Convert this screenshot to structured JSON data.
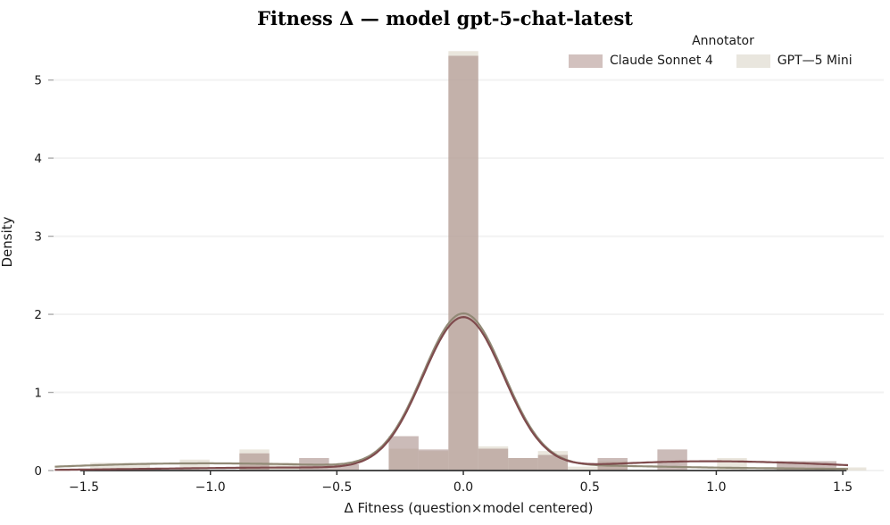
{
  "chart_data": {
    "type": "histogram+kde",
    "title": "Fitness Δ — model gpt-5-chat-latest",
    "xlabel": "Δ Fitness (question×model centered)",
    "ylabel": "Density",
    "xlim": [
      -1.62,
      1.662
    ],
    "ylim": [
      0,
      5.43
    ],
    "grid": "horizontal-only, light gray, behind data",
    "background": "#ffffff",
    "gridline_color": "#f2f2f2",
    "spine_color": "#333333",
    "bin_width": 0.118,
    "axes": {
      "x": {
        "ticks": [
          {
            "v": -1.5,
            "label": "−1.5"
          },
          {
            "v": -1.0,
            "label": "−1.0"
          },
          {
            "v": -0.5,
            "label": "−0.5"
          },
          {
            "v": 0.0,
            "label": "0.0"
          },
          {
            "v": 0.5,
            "label": "0.5"
          },
          {
            "v": 1.0,
            "label": "1.0"
          },
          {
            "v": 1.5,
            "label": "1.5"
          }
        ]
      },
      "y": {
        "ticks": [
          {
            "v": 0,
            "label": "0"
          },
          {
            "v": 1,
            "label": "1"
          },
          {
            "v": 2,
            "label": "2"
          },
          {
            "v": 3,
            "label": "3"
          },
          {
            "v": 4,
            "label": "4"
          },
          {
            "v": 5,
            "label": "5"
          }
        ]
      }
    },
    "legend": {
      "title": "Annotator",
      "entries": [
        {
          "label": "Claude Sonnet 4",
          "color": "#d2c1be"
        },
        {
          "label": "GPT—5 Mini",
          "color": "#e9e6de"
        }
      ]
    },
    "series": [
      {
        "name": "GPT—5 Mini",
        "fill": "#dcd6c6",
        "alpha": 0.6,
        "line_color": "#918a76",
        "bars": [
          [
            -1.475,
            0.1
          ],
          [
            -1.357,
            0.1
          ],
          [
            -1.121,
            0.14
          ],
          [
            -0.885,
            0.27
          ],
          [
            -0.767,
            0.1
          ],
          [
            -0.295,
            0.28
          ],
          [
            -0.177,
            0.25
          ],
          [
            -0.059,
            5.37
          ],
          [
            0.059,
            0.31
          ],
          [
            0.177,
            0.16
          ],
          [
            0.295,
            0.25
          ],
          [
            0.413,
            0.05
          ],
          [
            0.531,
            0.12
          ],
          [
            1.003,
            0.16
          ],
          [
            1.475,
            0.04
          ]
        ],
        "kde_peak": 2.0,
        "kde_components": [
          {
            "mu": 0.0,
            "sigma": 0.16,
            "amp": 1.97
          },
          {
            "mu": -0.85,
            "sigma": 0.5,
            "amp": 0.08
          },
          {
            "mu": -1.4,
            "sigma": 0.35,
            "amp": 0.03
          },
          {
            "mu": 0.45,
            "sigma": 0.35,
            "amp": 0.05
          },
          {
            "mu": 1.2,
            "sigma": 0.5,
            "amp": 0.025
          }
        ]
      },
      {
        "name": "Claude Sonnet 4",
        "fill": "#a98e88",
        "alpha": 0.6,
        "line_color": "#7f4b4d",
        "bars": [
          [
            -0.885,
            0.22
          ],
          [
            -0.649,
            0.16
          ],
          [
            -0.531,
            0.08
          ],
          [
            -0.295,
            0.44
          ],
          [
            -0.177,
            0.27
          ],
          [
            -0.059,
            5.31
          ],
          [
            0.059,
            0.28
          ],
          [
            0.177,
            0.16
          ],
          [
            0.295,
            0.2
          ],
          [
            0.531,
            0.16
          ],
          [
            0.767,
            0.27
          ],
          [
            1.239,
            0.12
          ],
          [
            1.357,
            0.12
          ]
        ],
        "kde_peak": 2.0,
        "kde_components": [
          {
            "mu": 0.0,
            "sigma": 0.16,
            "amp": 1.94
          },
          {
            "mu": 0.85,
            "sigma": 0.38,
            "amp": 0.1
          },
          {
            "mu": 1.4,
            "sigma": 0.35,
            "amp": 0.05
          },
          {
            "mu": -0.55,
            "sigma": 0.45,
            "amp": 0.035
          },
          {
            "mu": -1.2,
            "sigma": 0.4,
            "amp": 0.012
          }
        ]
      }
    ]
  }
}
